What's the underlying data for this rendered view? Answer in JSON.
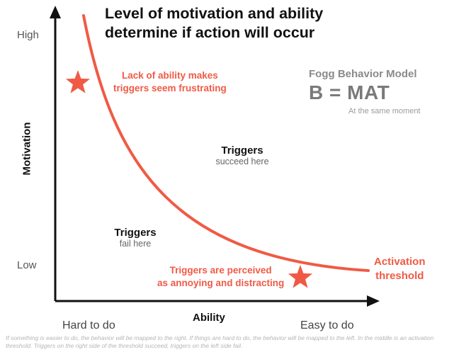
{
  "title_lines": [
    "Level of motivation and ability",
    "determine if action will occur"
  ],
  "y_axis": {
    "label": "Motivation",
    "high": "High",
    "low": "Low"
  },
  "x_axis": {
    "label": "Ability",
    "left": "Hard to do",
    "right": "Easy to do"
  },
  "notes": {
    "top_left": [
      "Lack of ability makes",
      "triggers seem frustrating"
    ],
    "bottom_right": [
      "Triggers are perceived",
      "as annoying and distracting"
    ]
  },
  "zones": {
    "succeed": {
      "title": "Triggers",
      "subtitle": "succeed here"
    },
    "fail": {
      "title": "Triggers",
      "subtitle": "fail here"
    }
  },
  "model": {
    "name": "Fogg Behavior Model",
    "formula": "B = MAT",
    "note": "At the same moment"
  },
  "threshold_label": [
    "Activation",
    "threshold"
  ],
  "caption": "If something is easier to do, the behavior will be mapped to the right. If things are hard to do, the behavior will be mapped to the left. In the middle is an activation threshold. Triggers on the right side of the threshold succeed, triggers on the left side fail.",
  "colors": {
    "accent": "#f05a45",
    "axis": "#111111"
  },
  "icons": {
    "markers": "star-icon"
  }
}
